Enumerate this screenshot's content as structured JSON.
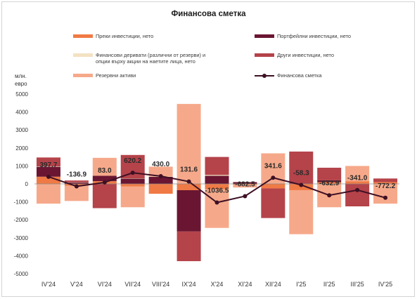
{
  "chart_data": {
    "type": "bar",
    "title": "Финансова сметка",
    "ylabel_line1": "млн.",
    "ylabel_line2": "евро",
    "ylim": [
      -5000,
      5000
    ],
    "yticks": [
      5000,
      4000,
      3000,
      2000,
      1000,
      0,
      -1000,
      -2000,
      -3000,
      -4000,
      -5000
    ],
    "categories": [
      "IV'24",
      "V'24",
      "VI'24",
      "VII'24",
      "VIII'24",
      "IX'24",
      "X'24",
      "XI'24",
      "XII'24",
      "I'25",
      "II'25",
      "III'25",
      "IV'25"
    ],
    "series": [
      {
        "name": "Преки инвестиции, нето",
        "color": "#f07a45",
        "kind": "bar",
        "values": [
          400,
          -100,
          150,
          -150,
          -550,
          -350,
          -300,
          -50,
          -250,
          -350,
          100,
          150,
          100
        ]
      },
      {
        "name": "Портфейлни инвестиции, нето",
        "color": "#6a1632",
        "kind": "bar",
        "values": [
          550,
          80,
          300,
          300,
          400,
          -2300,
          450,
          100,
          0,
          0,
          100,
          0,
          0
        ]
      },
      {
        "name": "Финансови деривати (различни от резерви) и опции върху акции на наетите лица, нето",
        "color": "#f3e2c2",
        "kind": "bar",
        "values": [
          20,
          10,
          0,
          10,
          10,
          0,
          50,
          0,
          0,
          0,
          0,
          0,
          0
        ]
      },
      {
        "name": "Други инвестиции, нето",
        "color": "#b5434a",
        "kind": "bar",
        "values": [
          500,
          100,
          -1350,
          1300,
          0,
          -1650,
          1000,
          0,
          -1650,
          1800,
          700,
          -1250,
          200
        ]
      },
      {
        "name": "Резервни активи",
        "color": "#f6a98a",
        "kind": "bar",
        "values": [
          -1100,
          -850,
          1000,
          -1150,
          550,
          4450,
          -2150,
          -150,
          1700,
          -2450,
          -1300,
          850,
          -1100
        ]
      },
      {
        "name": "Финансова сметка",
        "color": "#3e1024",
        "kind": "line",
        "values": [
          397.7,
          -136.9,
          83.0,
          620.2,
          430.0,
          131.6,
          -1036.5,
          -682.5,
          341.6,
          -58.3,
          -632.9,
          -341.0,
          -772.2
        ]
      }
    ],
    "data_labels": [
      "397.7",
      "-136.9",
      "83.0",
      "620.2",
      "430.0",
      "131.6",
      "-1036.5",
      "-682.5",
      "341.6",
      "-58.3",
      "-632.9",
      "-341.0",
      "-772.2"
    ],
    "legend_placement": "top",
    "grid": false
  }
}
